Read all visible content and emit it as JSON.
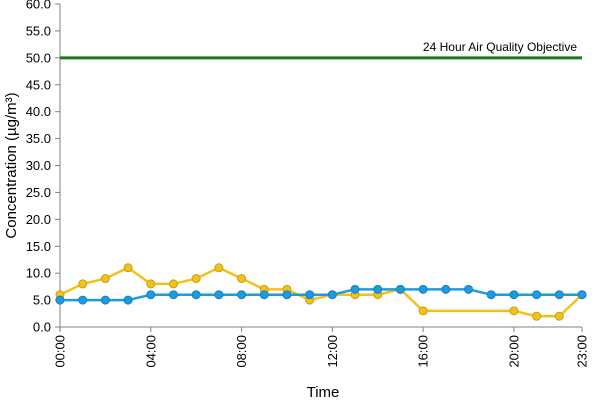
{
  "chart_data": {
    "type": "line",
    "title": "",
    "xlabel": "Time",
    "ylabel": "Concentration (µg/m³)",
    "ylim": [
      0,
      60
    ],
    "yticks": [
      "0.0",
      "5.0",
      "10.0",
      "15.0",
      "20.0",
      "25.0",
      "30.0",
      "35.0",
      "40.0",
      "45.0",
      "50.0",
      "55.0",
      "60.0"
    ],
    "xlim": [
      0,
      23
    ],
    "xticks": [
      {
        "hour": 0,
        "label": "00:00"
      },
      {
        "hour": 4,
        "label": "04:00"
      },
      {
        "hour": 8,
        "label": "08:00"
      },
      {
        "hour": 12,
        "label": "12:00"
      },
      {
        "hour": 16,
        "label": "16:00"
      },
      {
        "hour": 20,
        "label": "20:00"
      },
      {
        "hour": 23,
        "label": "23:00"
      }
    ],
    "grid": false,
    "legend": "none",
    "objective": {
      "value": 50,
      "label": "24 Hour Air Quality Objective",
      "color": "#1a7a1a"
    },
    "series": [
      {
        "color": "#f2c21b",
        "x": [
          0,
          1,
          2,
          3,
          4,
          5,
          6,
          7,
          8,
          9,
          10,
          11,
          12,
          13,
          14,
          15,
          16,
          20,
          21,
          22,
          23
        ],
        "values": [
          6,
          8,
          9,
          11,
          8,
          8,
          9,
          11,
          9,
          7,
          7,
          5,
          6,
          6,
          6,
          7,
          3,
          3,
          2,
          2,
          6
        ]
      },
      {
        "color": "#1e9be0",
        "x": [
          0,
          1,
          2,
          3,
          4,
          5,
          6,
          7,
          8,
          9,
          10,
          11,
          12,
          13,
          14,
          15,
          16,
          17,
          18,
          19,
          20,
          21,
          22,
          23
        ],
        "values": [
          5,
          5,
          5,
          5,
          6,
          6,
          6,
          6,
          6,
          6,
          6,
          6,
          6,
          7,
          7,
          7,
          7,
          7,
          7,
          6,
          6,
          6,
          6,
          6
        ]
      }
    ]
  }
}
